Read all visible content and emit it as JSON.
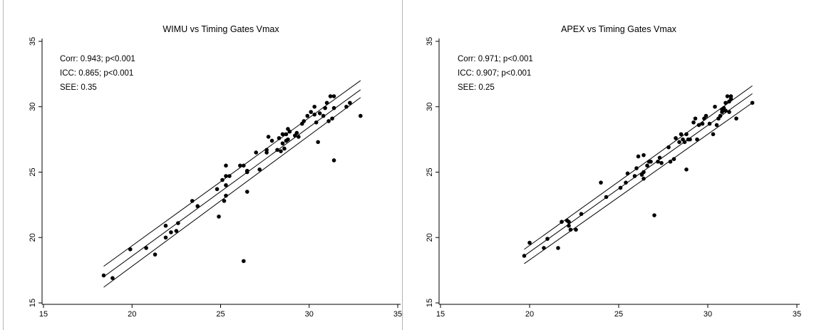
{
  "chart_data": [
    {
      "type": "scatter",
      "title": "WIMU vs Timing Gates Vmax",
      "xlabel": "",
      "ylabel": "",
      "xlim": [
        15,
        35
      ],
      "ylim": [
        15,
        35
      ],
      "xticks": [
        "15",
        "20",
        "25",
        "30",
        "35"
      ],
      "yticks": [
        "15",
        "20",
        "25",
        "30",
        "35"
      ],
      "grid": false,
      "annotations": [
        "Corr: 0.943; p<0.001",
        "ICC: 0.865; p<0.001",
        "SEE: 0.35"
      ],
      "fit_line": {
        "x": [
          18.4,
          32.9
        ],
        "y": [
          17.0,
          31.3
        ]
      },
      "confidence_band": {
        "x": [
          18.4,
          32.9
        ],
        "upper": [
          17.8,
          32.0
        ],
        "lower": [
          16.2,
          30.7
        ]
      },
      "points": [
        [
          18.4,
          17.1
        ],
        [
          18.9,
          16.9
        ],
        [
          19.9,
          19.1
        ],
        [
          20.8,
          19.2
        ],
        [
          21.3,
          18.7
        ],
        [
          21.9,
          20.0
        ],
        [
          21.9,
          20.9
        ],
        [
          22.2,
          20.4
        ],
        [
          22.5,
          20.5
        ],
        [
          22.6,
          21.1
        ],
        [
          23.4,
          22.8
        ],
        [
          23.7,
          22.4
        ],
        [
          24.8,
          23.7
        ],
        [
          24.9,
          21.6
        ],
        [
          25.1,
          24.4
        ],
        [
          25.2,
          22.8
        ],
        [
          25.3,
          23.2
        ],
        [
          25.3,
          24.0
        ],
        [
          25.3,
          24.7
        ],
        [
          25.3,
          25.5
        ],
        [
          25.5,
          24.7
        ],
        [
          26.1,
          25.5
        ],
        [
          26.3,
          25.5
        ],
        [
          26.3,
          18.2
        ],
        [
          26.5,
          23.5
        ],
        [
          26.5,
          25.0
        ],
        [
          26.5,
          25.1
        ],
        [
          27.0,
          26.5
        ],
        [
          27.2,
          25.2
        ],
        [
          27.6,
          26.5
        ],
        [
          27.6,
          26.7
        ],
        [
          27.7,
          27.7
        ],
        [
          27.9,
          27.4
        ],
        [
          28.2,
          26.7
        ],
        [
          28.3,
          27.6
        ],
        [
          28.4,
          26.6
        ],
        [
          28.5,
          27.2
        ],
        [
          28.5,
          27.9
        ],
        [
          28.6,
          26.8
        ],
        [
          28.7,
          27.4
        ],
        [
          28.7,
          27.9
        ],
        [
          28.8,
          27.5
        ],
        [
          28.8,
          28.3
        ],
        [
          28.9,
          28.1
        ],
        [
          29.2,
          27.8
        ],
        [
          29.3,
          28.0
        ],
        [
          29.4,
          27.7
        ],
        [
          29.6,
          28.7
        ],
        [
          29.7,
          28.9
        ],
        [
          29.9,
          29.3
        ],
        [
          30.1,
          29.6
        ],
        [
          30.3,
          29.4
        ],
        [
          30.3,
          30.0
        ],
        [
          30.4,
          28.8
        ],
        [
          30.5,
          27.3
        ],
        [
          30.6,
          29.5
        ],
        [
          30.8,
          29.3
        ],
        [
          30.9,
          29.9
        ],
        [
          31.0,
          30.3
        ],
        [
          31.1,
          28.9
        ],
        [
          31.2,
          30.8
        ],
        [
          31.3,
          29.1
        ],
        [
          31.4,
          30.8
        ],
        [
          31.4,
          25.9
        ],
        [
          31.4,
          29.9
        ],
        [
          32.1,
          30.0
        ],
        [
          32.3,
          30.3
        ],
        [
          32.9,
          29.3
        ]
      ]
    },
    {
      "type": "scatter",
      "title": "APEX vs Timing Gates Vmax",
      "xlabel": "",
      "ylabel": "",
      "xlim": [
        15,
        35
      ],
      "ylim": [
        15,
        35
      ],
      "xticks": [
        "15",
        "20",
        "25",
        "30",
        "35"
      ],
      "yticks": [
        "15",
        "20",
        "25",
        "30",
        "35"
      ],
      "grid": false,
      "annotations": [
        "Corr: 0.971; p<0.001",
        "ICC: 0.907; p<0.001",
        "SEE: 0.25"
      ],
      "fit_line": {
        "x": [
          19.7,
          32.5
        ],
        "y": [
          18.6,
          31.0
        ]
      },
      "confidence_band": {
        "x": [
          19.7,
          32.5
        ],
        "upper": [
          19.1,
          31.6
        ],
        "lower": [
          18.0,
          30.3
        ]
      },
      "points": [
        [
          19.7,
          18.6
        ],
        [
          20.0,
          19.6
        ],
        [
          20.8,
          19.2
        ],
        [
          21.0,
          19.9
        ],
        [
          21.6,
          19.2
        ],
        [
          21.8,
          21.2
        ],
        [
          22.1,
          21.3
        ],
        [
          22.2,
          20.9
        ],
        [
          22.2,
          21.2
        ],
        [
          22.3,
          20.6
        ],
        [
          22.6,
          20.6
        ],
        [
          22.9,
          21.8
        ],
        [
          24.0,
          24.2
        ],
        [
          24.3,
          23.1
        ],
        [
          25.1,
          23.8
        ],
        [
          25.4,
          24.2
        ],
        [
          25.5,
          24.9
        ],
        [
          25.9,
          24.7
        ],
        [
          26.0,
          25.3
        ],
        [
          26.1,
          26.2
        ],
        [
          26.3,
          24.8
        ],
        [
          26.4,
          24.5
        ],
        [
          26.4,
          25.0
        ],
        [
          26.4,
          26.3
        ],
        [
          26.6,
          25.5
        ],
        [
          26.7,
          25.8
        ],
        [
          26.8,
          25.8
        ],
        [
          27.0,
          21.7
        ],
        [
          27.2,
          25.8
        ],
        [
          27.3,
          26.1
        ],
        [
          27.4,
          25.7
        ],
        [
          27.8,
          26.9
        ],
        [
          27.9,
          25.8
        ],
        [
          28.1,
          26.0
        ],
        [
          28.2,
          27.6
        ],
        [
          28.4,
          27.3
        ],
        [
          28.5,
          27.9
        ],
        [
          28.6,
          27.5
        ],
        [
          28.7,
          27.3
        ],
        [
          28.8,
          25.2
        ],
        [
          28.8,
          27.9
        ],
        [
          28.9,
          27.5
        ],
        [
          29.0,
          27.5
        ],
        [
          29.2,
          28.8
        ],
        [
          29.3,
          29.1
        ],
        [
          29.4,
          27.5
        ],
        [
          29.5,
          28.6
        ],
        [
          29.7,
          28.7
        ],
        [
          29.8,
          29.1
        ],
        [
          29.9,
          29.3
        ],
        [
          30.1,
          28.7
        ],
        [
          30.3,
          27.9
        ],
        [
          30.4,
          30.0
        ],
        [
          30.5,
          28.6
        ],
        [
          30.6,
          29.1
        ],
        [
          30.7,
          29.3
        ],
        [
          30.8,
          29.6
        ],
        [
          30.8,
          29.8
        ],
        [
          30.9,
          29.9
        ],
        [
          31.0,
          30.3
        ],
        [
          31.0,
          29.7
        ],
        [
          31.1,
          30.8
        ],
        [
          31.2,
          29.6
        ],
        [
          31.2,
          30.4
        ],
        [
          31.3,
          30.6
        ],
        [
          31.3,
          30.8
        ],
        [
          31.6,
          29.1
        ],
        [
          32.5,
          30.3
        ]
      ]
    }
  ]
}
